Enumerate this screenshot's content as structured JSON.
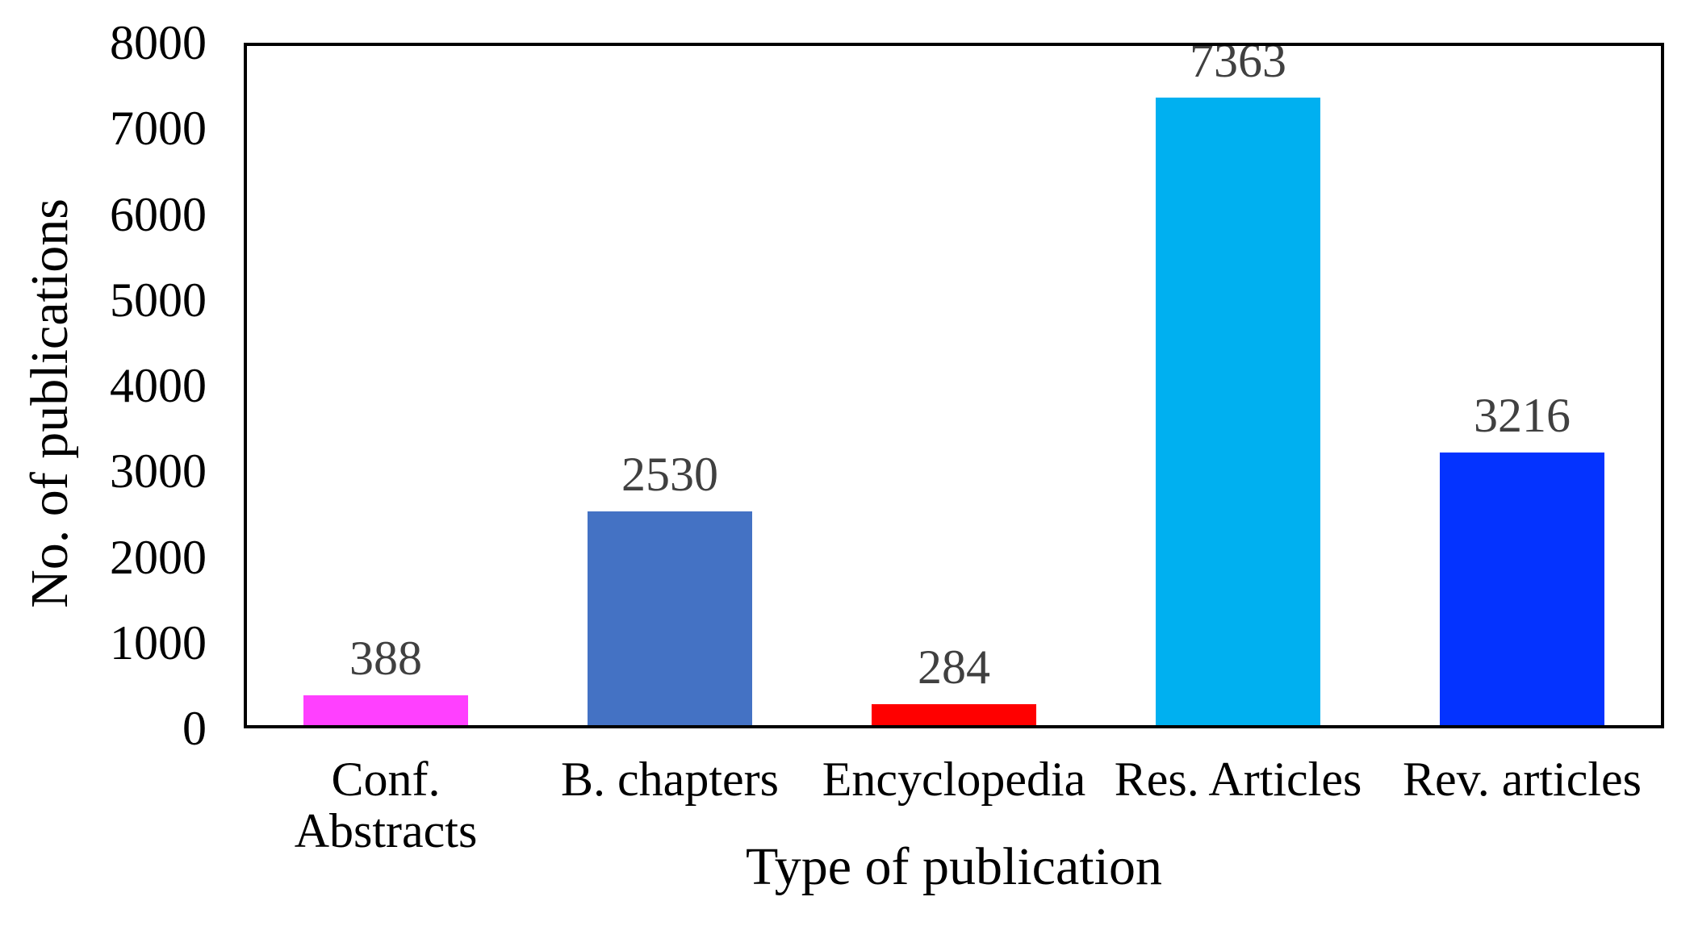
{
  "chart_data": {
    "type": "bar",
    "title": "",
    "xlabel": "Type of publication",
    "ylabel": "No. of publications",
    "categories": [
      "Conf.\nAbstracts",
      "B. chapters",
      "Encyclopedia",
      "Res. Articles",
      "Rev. articles"
    ],
    "values": [
      388,
      2530,
      284,
      7363,
      3216
    ],
    "bar_colors": [
      "#FF40FF",
      "#4472C4",
      "#FF0000",
      "#00B0F0",
      "#0433FF"
    ],
    "value_label_color": "#404040",
    "tick_label_color": "#000000",
    "axis_color": "#000000",
    "background_color": "#FFFFFF",
    "ylim": [
      0,
      8000
    ],
    "yticks": [
      0,
      1000,
      2000,
      3000,
      4000,
      5000,
      6000,
      7000,
      8000
    ],
    "grid": false,
    "legend_position": "none",
    "bar_width_fraction": 0.58
  }
}
